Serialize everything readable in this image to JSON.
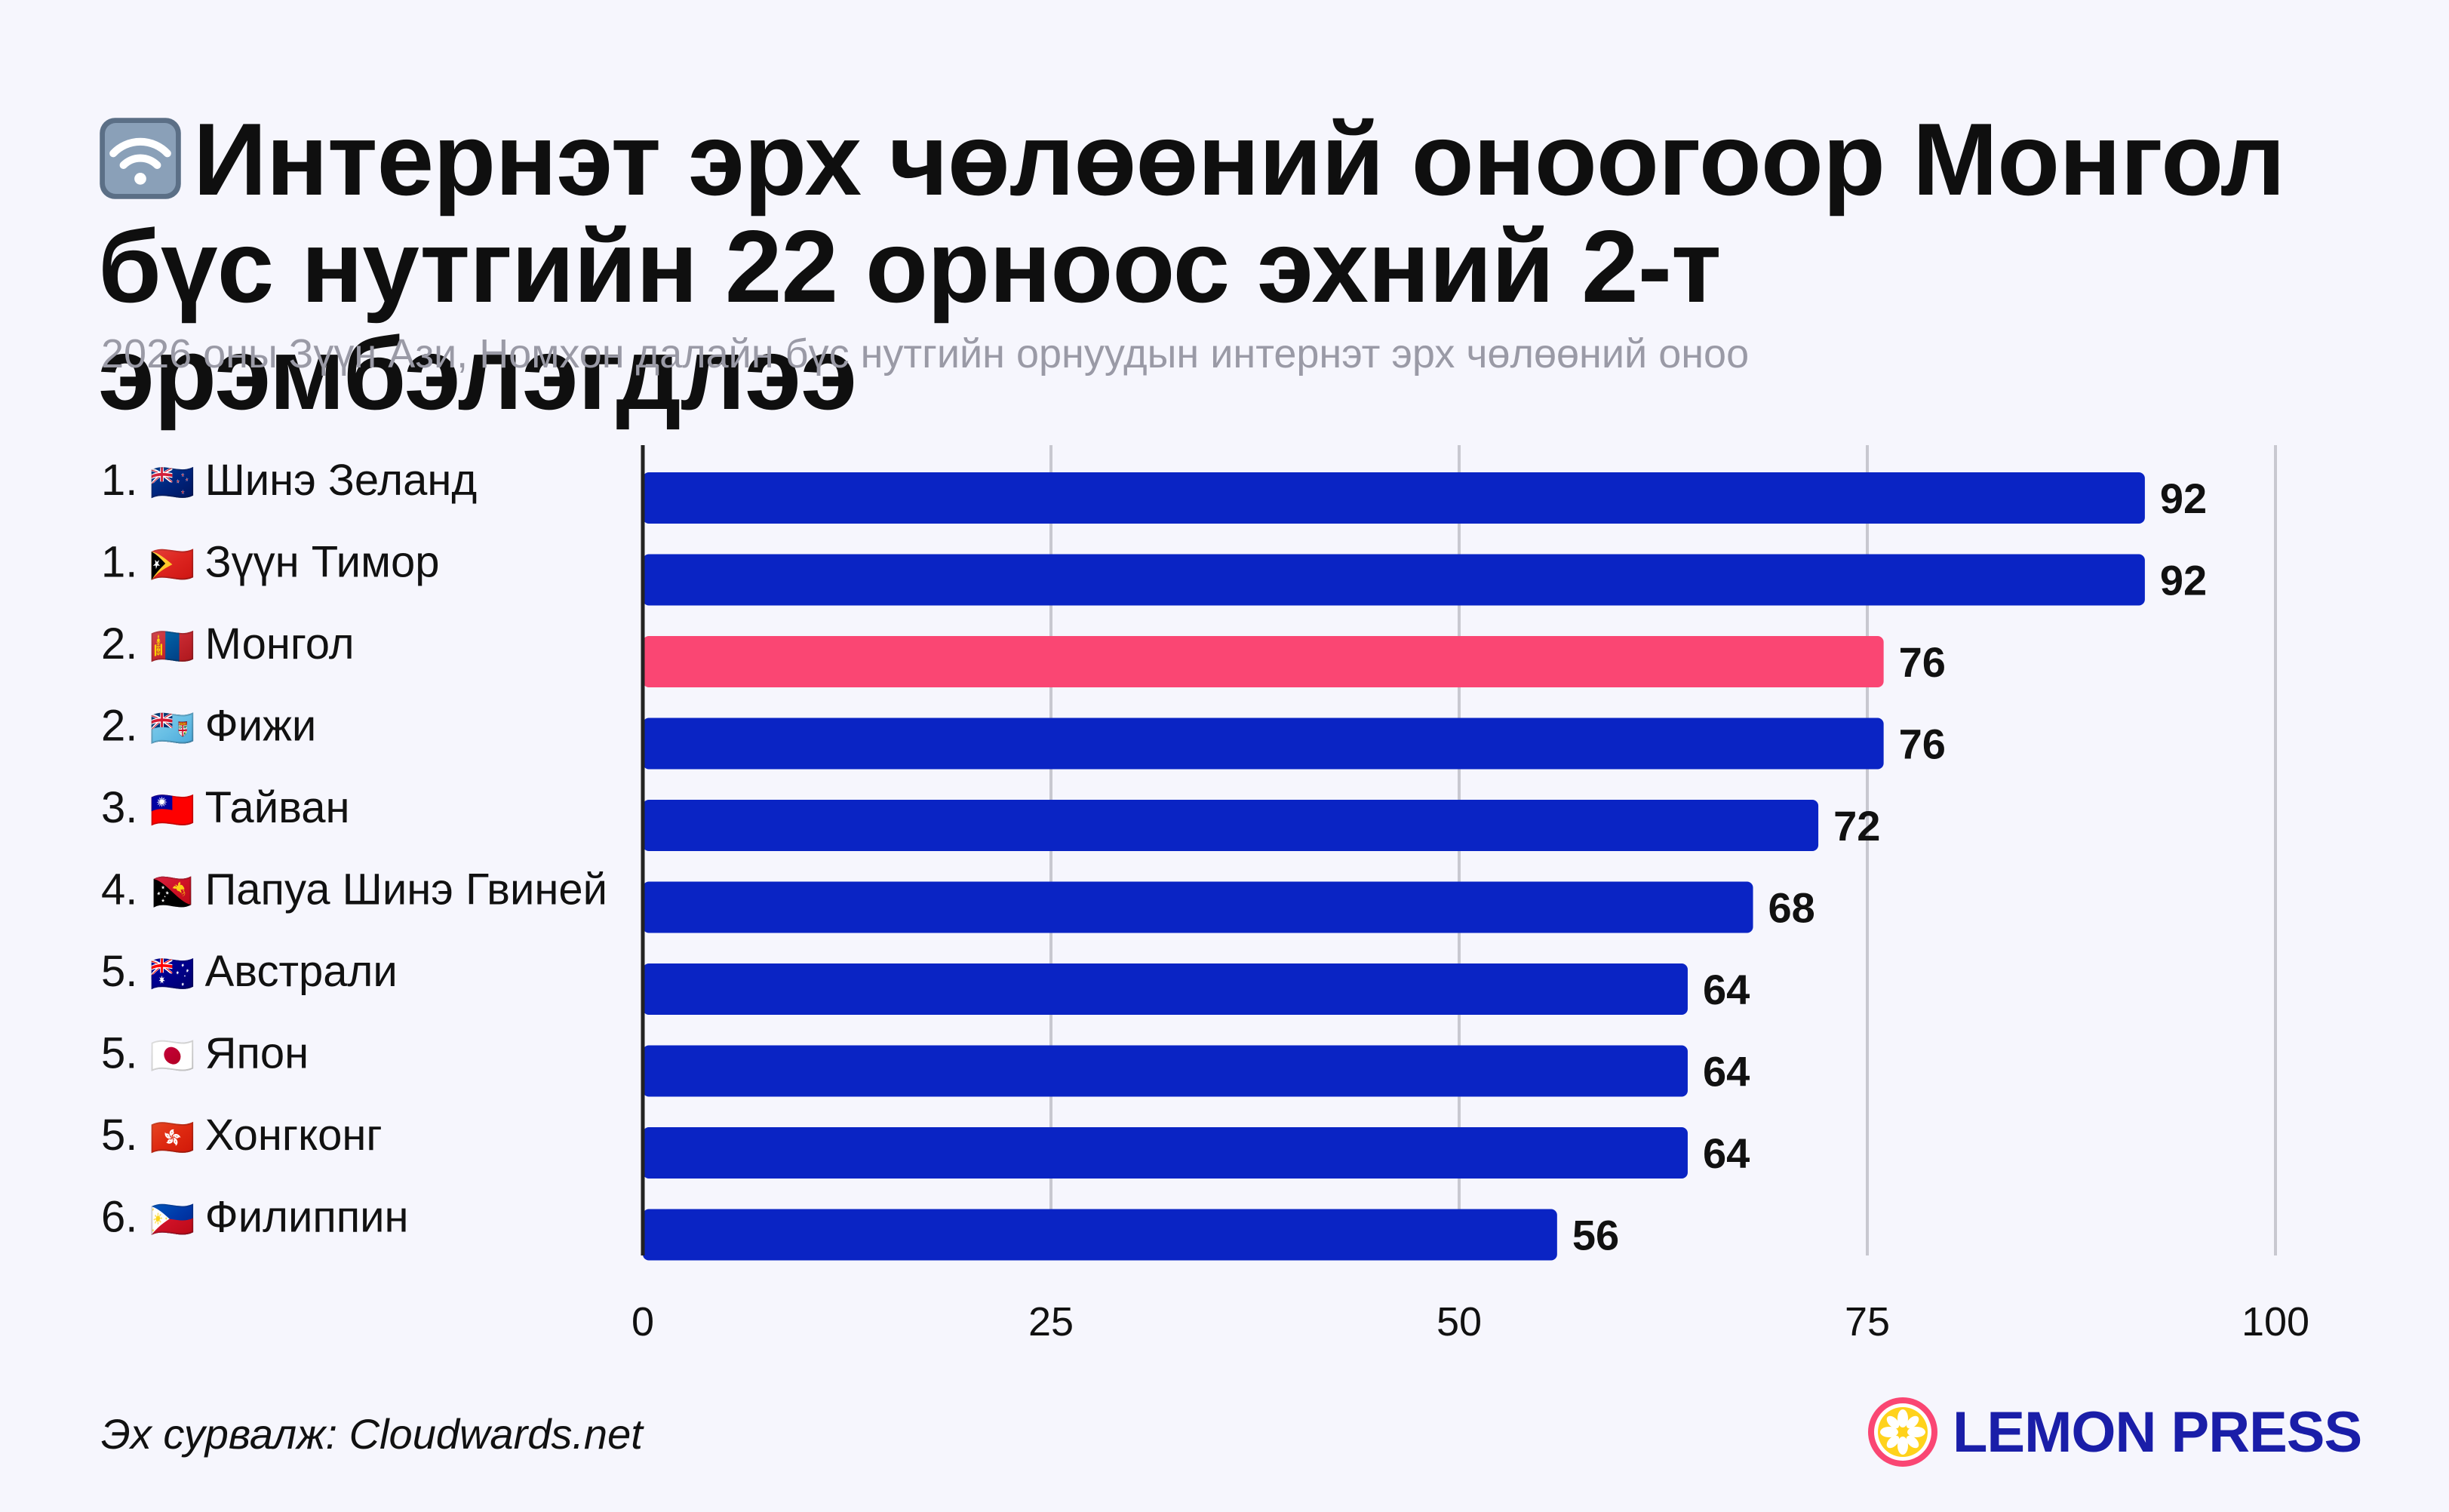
{
  "header": {
    "icon": "wifi-icon",
    "title": "Интернэт эрх чөлөөний оноогоор Монгол бүс нутгийн 22 орноос эхний 2-т эрэмбэлэгдлээ",
    "subtitle": "2026 оны Зүүн Ази, Номхон далайн бүс нутгийн орнуудын интернэт эрх чөлөөний оноо"
  },
  "colors": {
    "bar": "#0a24c4",
    "highlight": "#fa4673",
    "grid": "#c8c8d0",
    "axis": "#222222"
  },
  "chart_data": {
    "type": "bar",
    "orientation": "horizontal",
    "title": "Интернэт эрх чөлөөний оноогоор Монгол бүс нутгийн 22 орноос эхний 2-т эрэмбэлэгдлээ",
    "xlabel": "",
    "ylabel": "",
    "xlim": [
      0,
      100
    ],
    "ticks": [
      0,
      25,
      50,
      75,
      100
    ],
    "grid": true,
    "categories": [
      {
        "rank": "1.",
        "flag": "🇳🇿",
        "name": "Шинэ Зеланд",
        "value": 92,
        "highlight": false
      },
      {
        "rank": "1.",
        "flag": "🇹🇱",
        "name": "Зүүн Тимор",
        "value": 92,
        "highlight": false
      },
      {
        "rank": "2.",
        "flag": "🇲🇳",
        "name": "Монгол",
        "value": 76,
        "highlight": true
      },
      {
        "rank": "2.",
        "flag": "🇫🇯",
        "name": "Фижи",
        "value": 76,
        "highlight": false
      },
      {
        "rank": "3.",
        "flag": "🇹🇼",
        "name": "Тайван",
        "value": 72,
        "highlight": false
      },
      {
        "rank": "4.",
        "flag": "🇵🇬",
        "name": "Папуа Шинэ Гвиней",
        "value": 68,
        "highlight": false
      },
      {
        "rank": "5.",
        "flag": "🇦🇺",
        "name": "Австрали",
        "value": 64,
        "highlight": false
      },
      {
        "rank": "5.",
        "flag": "🇯🇵",
        "name": "Япон",
        "value": 64,
        "highlight": false
      },
      {
        "rank": "5.",
        "flag": "🇭🇰",
        "name": "Хонгконг",
        "value": 64,
        "highlight": false
      },
      {
        "rank": "6.",
        "flag": "🇵🇭",
        "name": "Филиппин",
        "value": 56,
        "highlight": false
      }
    ]
  },
  "footer": {
    "source": "Эх сурвалж: Cloudwards.net",
    "logo_text": "LEMON PRESS",
    "logo_icon": "lemon-icon"
  }
}
